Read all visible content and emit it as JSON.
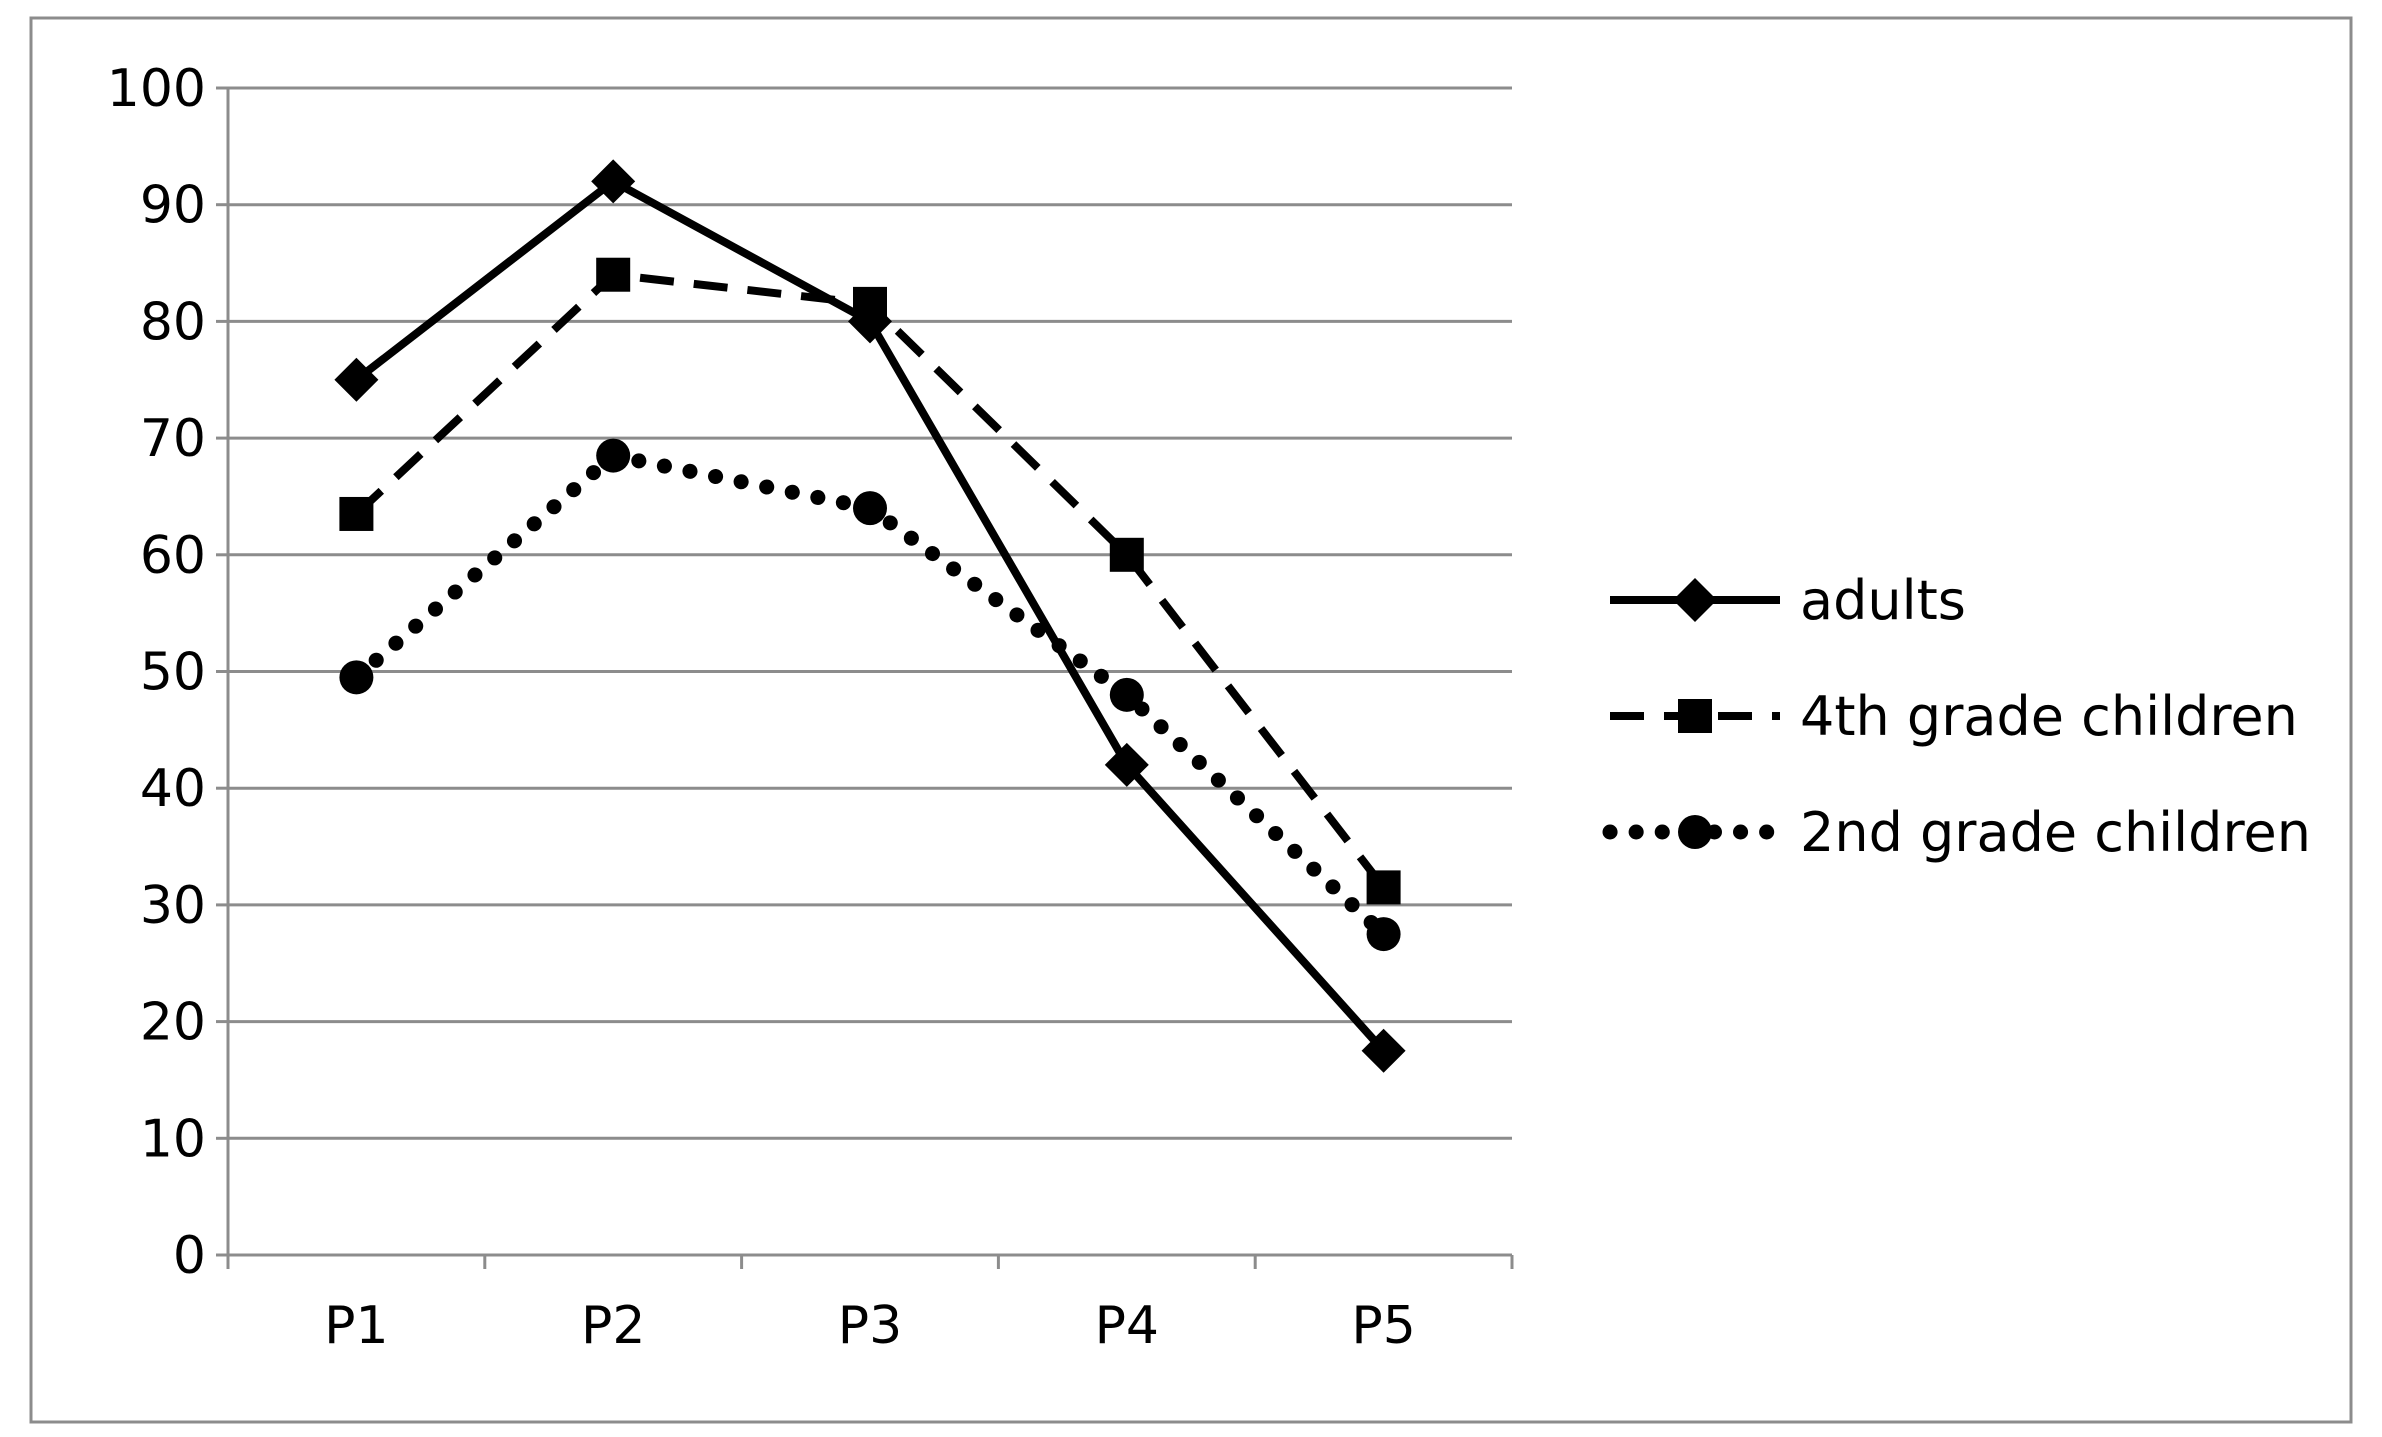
{
  "chart_data": {
    "type": "line",
    "categories": [
      "P1",
      "P2",
      "P3",
      "P4",
      "P5"
    ],
    "ylim": [
      0,
      100
    ],
    "yticks": [
      "0",
      "10",
      "20",
      "30",
      "40",
      "50",
      "60",
      "70",
      "80",
      "90",
      "100"
    ],
    "grid": true,
    "legend_position": "right",
    "series": [
      {
        "name": "adults",
        "values": [
          75,
          92,
          80,
          42,
          17.5
        ],
        "line_style": "solid",
        "marker": "diamond",
        "color": "#000000"
      },
      {
        "name": "4th grade children",
        "values": [
          63.5,
          84,
          81.5,
          60,
          31.5
        ],
        "line_style": "dashed",
        "marker": "square",
        "color": "#000000"
      },
      {
        "name": "2nd grade children",
        "values": [
          49.5,
          68.5,
          64,
          48,
          27.5
        ],
        "line_style": "dotted",
        "marker": "circle",
        "color": "#000000"
      }
    ]
  }
}
